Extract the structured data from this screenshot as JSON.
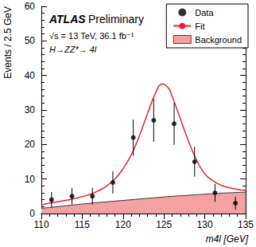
{
  "chart_data": {
    "type": "scatter",
    "annotations": [
      "ATLAS",
      "Preliminary",
      "√s = 13 TeV, 36.1 fb⁻¹",
      "H→ZZ*→ 4l"
    ],
    "x_label": "m4l [GeV]",
    "y_label": "Events / 2.5 GeV",
    "xlim": [
      110,
      135
    ],
    "xticks": [
      110,
      115,
      120,
      125,
      130,
      135
    ],
    "ylim": [
      0,
      60
    ],
    "yticks": [
      0,
      10,
      20,
      30,
      40,
      50,
      60
    ],
    "legend": "upper right",
    "series": [
      {
        "name": "Data",
        "type": "scatter",
        "marker": "circle",
        "color": "#000000",
        "x": [
          111.25,
          113.75,
          116.25,
          118.75,
          121.25,
          123.75,
          126.25,
          128.75,
          131.25,
          133.75
        ],
        "values": [
          4,
          5,
          5,
          9,
          22,
          27,
          26,
          15,
          6,
          3
        ],
        "errors": [
          2.2,
          2.4,
          2.4,
          3.2,
          5.2,
          6.2,
          6.1,
          4.3,
          2.6,
          1.9
        ]
      },
      {
        "name": "Fit",
        "type": "line",
        "color": "#e3262b",
        "x": [
          110,
          111,
          112,
          113,
          114,
          115,
          116,
          117,
          118,
          119,
          120,
          121,
          122,
          123,
          124,
          124.8,
          125.5,
          126,
          127,
          128,
          129,
          130,
          131,
          132,
          133,
          134,
          135
        ],
        "values": [
          2.5,
          3.0,
          3.4,
          3.8,
          4.3,
          4.9,
          5.6,
          6.6,
          8.0,
          10.0,
          13.0,
          17.0,
          22.5,
          29.0,
          35.0,
          37.5,
          36.5,
          34.0,
          27.5,
          21.0,
          15.5,
          11.5,
          9.5,
          8.2,
          7.5,
          7.0,
          6.7
        ]
      },
      {
        "name": "Background",
        "type": "area",
        "color": "#f3a1a1",
        "x": [
          110,
          112,
          114,
          116,
          118,
          120,
          122,
          124,
          126,
          128,
          130,
          132,
          134,
          135
        ],
        "values": [
          1.5,
          2.0,
          2.5,
          3.0,
          3.4,
          3.8,
          4.2,
          4.6,
          5.0,
          5.3,
          5.6,
          5.9,
          6.1,
          6.2
        ]
      }
    ]
  }
}
